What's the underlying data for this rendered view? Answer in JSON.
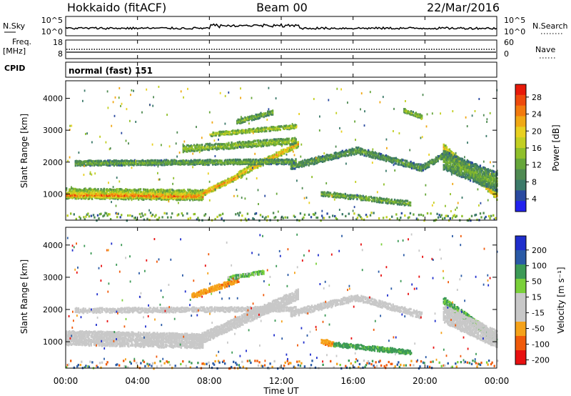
{
  "header": {
    "station": "Hokkaido (fitACF)",
    "beam": "Beam 00",
    "date": "22/Mar/2016"
  },
  "panels": {
    "nsky": {
      "label": "N.Sky",
      "right_label": "N.Search",
      "left_ticks": [
        "10^5",
        "10^0"
      ],
      "right_ticks": [
        "10^5",
        "10^0"
      ]
    },
    "freq": {
      "label_line1": "Freq.",
      "label_line2": "[MHz]",
      "right_label": "Nave",
      "left_ticks": [
        "18",
        "8"
      ],
      "right_ticks": [
        "60",
        "0"
      ]
    },
    "cpid": {
      "label": "CPID",
      "value": "normal (fast) 151"
    }
  },
  "colorbars": {
    "power": {
      "title": "Power [dB]",
      "ticks": [
        "28",
        "24",
        "20",
        "16",
        "12",
        "8",
        "4"
      ],
      "colors": [
        "#2222ee",
        "#2a4aa0",
        "#3c7a6a",
        "#4f8a52",
        "#66a63a",
        "#8fbf2a",
        "#c2cf22",
        "#e8d020",
        "#f0a814",
        "#f27a0e",
        "#ee4a0c",
        "#e81a0a"
      ]
    },
    "velocity": {
      "title": "Velocity [m s⁻¹]",
      "ticks": [
        "200",
        "100",
        "50",
        "15",
        "-15",
        "-50",
        "-100",
        "-200"
      ],
      "colors": [
        "#e81010",
        "#f05a0a",
        "#f5a21a",
        "#c8c8c8",
        "#c8c8c8",
        "#7ad03a",
        "#3c9a56",
        "#2a5aa6",
        "#1f2ecc"
      ]
    }
  },
  "chart_data": [
    {
      "type": "heatmap",
      "name": "power",
      "ylabel": "Slant Range [km]",
      "xlabel": "Time UT",
      "x_ticks": [
        "00:00",
        "04:00",
        "08:00",
        "12:00",
        "16:00",
        "20:00",
        "00:00"
      ],
      "y_ticks": [
        1000,
        2000,
        3000,
        4000
      ],
      "ylim": [
        180,
        4550
      ],
      "xlim_hours": [
        0,
        24
      ],
      "colorbar_range": [
        0,
        32
      ],
      "bands": [
        {
          "t0": 0.0,
          "t1": 7.6,
          "r": 1050,
          "r2": 1000,
          "w": 330,
          "v": 20
        },
        {
          "t0": 0.0,
          "t1": 7.6,
          "r": 1000,
          "r2": 960,
          "w": 140,
          "v": 28
        },
        {
          "t0": 7.4,
          "t1": 9.8,
          "r": 1000,
          "r2": 1650,
          "w": 160,
          "v": 26
        },
        {
          "t0": 9.6,
          "t1": 12.9,
          "r": 1650,
          "r2": 2600,
          "w": 180,
          "v": 24
        },
        {
          "t0": 0.5,
          "t1": 12.8,
          "r": 2000,
          "r2": 2050,
          "w": 160,
          "v": 13
        },
        {
          "t0": 6.5,
          "t1": 12.8,
          "r": 2450,
          "r2": 2700,
          "w": 200,
          "v": 16
        },
        {
          "t0": 8.0,
          "t1": 12.8,
          "r": 2900,
          "r2": 3150,
          "w": 120,
          "v": 18
        },
        {
          "t0": 9.5,
          "t1": 11.5,
          "r": 3300,
          "r2": 3600,
          "w": 150,
          "v": 14
        },
        {
          "t0": 12.5,
          "t1": 16.2,
          "r": 1900,
          "r2": 2400,
          "w": 200,
          "v": 12
        },
        {
          "t0": 16.2,
          "t1": 19.8,
          "r": 2400,
          "r2": 1850,
          "w": 200,
          "v": 12
        },
        {
          "t0": 19.8,
          "t1": 21.2,
          "r": 1850,
          "r2": 2300,
          "w": 180,
          "v": 12
        },
        {
          "t0": 14.2,
          "t1": 19.2,
          "r": 1050,
          "r2": 730,
          "w": 150,
          "v": 14
        },
        {
          "t0": 21.0,
          "t1": 24.0,
          "r": 2500,
          "r2": 950,
          "w": 220,
          "v": 24
        },
        {
          "t0": 21.0,
          "t1": 24.0,
          "r": 2100,
          "r2": 1400,
          "w": 600,
          "v": 13
        },
        {
          "t0": 18.8,
          "t1": 19.8,
          "r": 3650,
          "r2": 3450,
          "w": 120,
          "v": 16
        }
      ]
    },
    {
      "type": "heatmap",
      "name": "velocity",
      "ylabel": "Slant Range [km]",
      "xlabel": "Time UT",
      "x_ticks": [
        "00:00",
        "04:00",
        "08:00",
        "12:00",
        "16:00",
        "20:00",
        "00:00"
      ],
      "y_ticks": [
        1000,
        2000,
        3000,
        4000
      ],
      "ylim": [
        180,
        4550
      ],
      "xlim_hours": [
        0,
        24
      ],
      "colorbar_range": [
        -250,
        250
      ],
      "bands": [
        {
          "t0": 0.0,
          "t1": 7.6,
          "r": 1150,
          "r2": 1050,
          "w": 450,
          "v": 0
        },
        {
          "t0": 7.4,
          "t1": 12.9,
          "r": 1100,
          "r2": 2500,
          "w": 320,
          "v": 0
        },
        {
          "t0": 0.5,
          "t1": 12.8,
          "r": 2000,
          "r2": 2050,
          "w": 150,
          "v": 0
        },
        {
          "t0": 7.0,
          "t1": 9.6,
          "r": 2450,
          "r2": 2950,
          "w": 160,
          "v": -60
        },
        {
          "t0": 9.0,
          "t1": 11.0,
          "r": 3000,
          "r2": 3200,
          "w": 120,
          "v": 30
        },
        {
          "t0": 12.5,
          "t1": 16.2,
          "r": 1900,
          "r2": 2400,
          "w": 200,
          "v": 0
        },
        {
          "t0": 16.2,
          "t1": 19.8,
          "r": 2400,
          "r2": 1850,
          "w": 200,
          "v": 0
        },
        {
          "t0": 14.2,
          "t1": 14.9,
          "r": 1050,
          "r2": 950,
          "w": 170,
          "v": -60
        },
        {
          "t0": 14.9,
          "t1": 19.2,
          "r": 950,
          "r2": 700,
          "w": 140,
          "v": 45
        },
        {
          "t0": 21.0,
          "t1": 24.0,
          "r": 2300,
          "r2": 1100,
          "w": 260,
          "v": 30
        },
        {
          "t0": 21.0,
          "t1": 24.0,
          "r": 1900,
          "r2": 1100,
          "w": 550,
          "v": 0
        }
      ]
    }
  ]
}
